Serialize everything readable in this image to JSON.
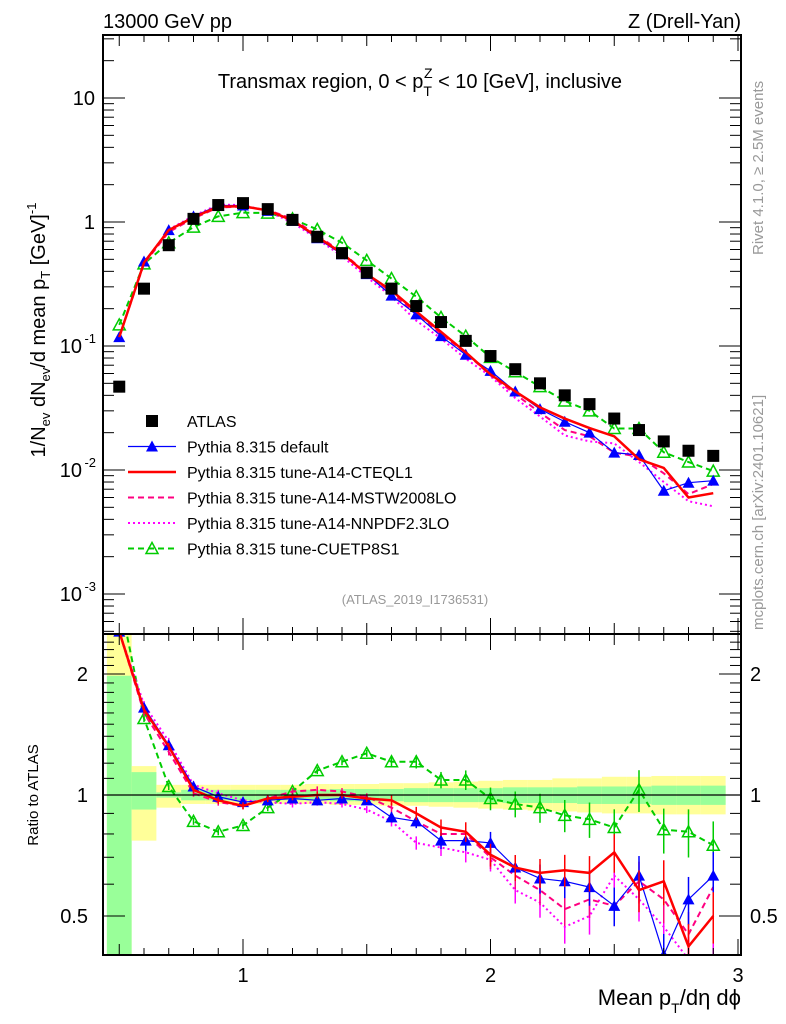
{
  "chart_data": [
    {
      "panel": "main",
      "type": "line",
      "title": "Transmax region, 0 < p_T^Z < 10 [GeV], inclusive",
      "header_left": "13000 GeV pp",
      "header_right": "Z (Drell-Yan)",
      "xlabel": "Mean p_T/dη dφ",
      "ylabel": "1/N_ev dN_ev/d mean p_T [GeV]^-1",
      "yscale": "log",
      "xlim": [
        0.4,
        3.0
      ],
      "ylim": [
        0.0005,
        30
      ],
      "x_ticks": [
        "1",
        "2",
        "3"
      ],
      "y_ticks": [
        "10^-3",
        "10^-2",
        "10^-1",
        "1",
        "10"
      ],
      "legend_position": "bottom-left",
      "annotation": "(ATLAS_2019_I1736531)",
      "x": [
        0.5,
        0.6,
        0.7,
        0.8,
        0.9,
        1.0,
        1.1,
        1.2,
        1.3,
        1.4,
        1.5,
        1.6,
        1.7,
        1.8,
        1.9,
        2.0,
        2.1,
        2.2,
        2.3,
        2.4,
        2.5,
        2.6,
        2.7,
        2.8,
        2.9
      ],
      "series": [
        {
          "name": "ATLAS",
          "color": "#000000",
          "style": "marker-square",
          "values": [
            0.047,
            0.29,
            0.65,
            1.06,
            1.37,
            1.42,
            1.27,
            1.04,
            0.76,
            0.56,
            0.39,
            0.29,
            0.21,
            0.156,
            0.11,
            0.083,
            0.065,
            0.05,
            0.04,
            0.034,
            0.026,
            0.021,
            0.017,
            0.0143,
            0.013
          ]
        },
        {
          "name": "Pythia 8.315 default",
          "color": "#0000ff",
          "style": "solid-triangle",
          "values": [
            0.118,
            0.48,
            0.86,
            1.11,
            1.36,
            1.36,
            1.23,
            1.02,
            0.74,
            0.55,
            0.38,
            0.255,
            0.18,
            0.12,
            0.085,
            0.063,
            0.043,
            0.031,
            0.0245,
            0.02,
            0.0138,
            0.0132,
            0.0068,
            0.0079,
            0.0082
          ]
        },
        {
          "name": "Pythia 8.315 tune-A14-CTEQL1",
          "color": "#ff0000",
          "style": "solid-thick",
          "values": [
            0.118,
            0.47,
            0.86,
            1.09,
            1.33,
            1.34,
            1.24,
            1.03,
            0.76,
            0.56,
            0.38,
            0.28,
            0.19,
            0.13,
            0.089,
            0.059,
            0.043,
            0.032,
            0.026,
            0.0218,
            0.0187,
            0.0122,
            0.0104,
            0.006,
            0.0065
          ]
        },
        {
          "name": "Pythia 8.315 tune-A14-MSTW2008LO",
          "color": "#ff0080",
          "style": "dashed",
          "values": [
            0.118,
            0.46,
            0.83,
            1.07,
            1.31,
            1.33,
            1.25,
            1.06,
            0.78,
            0.57,
            0.385,
            0.27,
            0.18,
            0.125,
            0.088,
            0.058,
            0.041,
            0.029,
            0.021,
            0.0187,
            0.0138,
            0.0128,
            0.0094,
            0.0064,
            0.0077
          ]
        },
        {
          "name": "Pythia 8.315 tune-A14-NNPDF2.3LO",
          "color": "#ff00ff",
          "style": "dotted",
          "values": [
            0.118,
            0.47,
            0.87,
            1.12,
            1.38,
            1.37,
            1.22,
            0.99,
            0.73,
            0.53,
            0.36,
            0.25,
            0.16,
            0.115,
            0.079,
            0.057,
            0.038,
            0.027,
            0.019,
            0.017,
            0.0164,
            0.0116,
            0.008,
            0.0056,
            0.0051
          ]
        },
        {
          "name": "Pythia 8.315 tune-CUETP8S1",
          "color": "#00cc00",
          "style": "dashed-open-triangle",
          "values": [
            0.148,
            0.46,
            0.68,
            0.91,
            1.11,
            1.19,
            1.18,
            1.06,
            0.87,
            0.68,
            0.49,
            0.35,
            0.25,
            0.17,
            0.12,
            0.081,
            0.062,
            0.047,
            0.036,
            0.03,
            0.0216,
            0.0216,
            0.0139,
            0.0116,
            0.0098
          ]
        }
      ]
    },
    {
      "panel": "ratio",
      "type": "line",
      "ylabel": "Ratio to ATLAS",
      "xlabel": "Mean p_T/dη dφ",
      "yscale": "log",
      "xlim": [
        0.4,
        3.0
      ],
      "ylim": [
        0.4,
        2.5
      ],
      "x_ticks": [
        "1",
        "2",
        "3"
      ],
      "y_ticks": [
        "0.5",
        "1",
        "2"
      ],
      "reference_line": 1,
      "x": [
        0.5,
        0.6,
        0.7,
        0.8,
        0.9,
        1.0,
        1.1,
        1.2,
        1.3,
        1.4,
        1.5,
        1.6,
        1.7,
        1.8,
        1.9,
        2.0,
        2.1,
        2.2,
        2.3,
        2.4,
        2.5,
        2.6,
        2.7,
        2.8,
        2.9
      ],
      "band_stat_green": [
        [
          0.35,
          1.98
        ],
        [
          0.92,
          1.14
        ],
        [
          0.985,
          1.015
        ],
        [
          0.97,
          1.03
        ],
        [
          0.97,
          1.03
        ],
        [
          0.97,
          1.03
        ],
        [
          0.97,
          1.03
        ],
        [
          0.97,
          1.03
        ],
        [
          0.97,
          1.03
        ],
        [
          0.965,
          1.035
        ],
        [
          0.965,
          1.035
        ],
        [
          0.965,
          1.035
        ],
        [
          0.96,
          1.04
        ],
        [
          0.96,
          1.04
        ],
        [
          0.96,
          1.04
        ],
        [
          0.96,
          1.04
        ],
        [
          0.955,
          1.045
        ],
        [
          0.955,
          1.045
        ],
        [
          0.955,
          1.045
        ],
        [
          0.95,
          1.05
        ],
        [
          0.95,
          1.05
        ],
        [
          0.95,
          1.05
        ],
        [
          0.945,
          1.055
        ],
        [
          0.945,
          1.055
        ],
        [
          0.945,
          1.055
        ]
      ],
      "band_total_yellow": [
        [
          0.35,
          2.5
        ],
        [
          0.77,
          1.18
        ],
        [
          0.93,
          1.06
        ],
        [
          0.95,
          1.06
        ],
        [
          0.95,
          1.06
        ],
        [
          0.95,
          1.06
        ],
        [
          0.95,
          1.06
        ],
        [
          0.95,
          1.06
        ],
        [
          0.95,
          1.065
        ],
        [
          0.945,
          1.065
        ],
        [
          0.945,
          1.065
        ],
        [
          0.94,
          1.07
        ],
        [
          0.94,
          1.07
        ],
        [
          0.935,
          1.075
        ],
        [
          0.93,
          1.08
        ],
        [
          0.925,
          1.085
        ],
        [
          0.92,
          1.09
        ],
        [
          0.915,
          1.09
        ],
        [
          0.91,
          1.1
        ],
        [
          0.905,
          1.1
        ],
        [
          0.9,
          1.11
        ],
        [
          0.9,
          1.11
        ],
        [
          0.895,
          1.115
        ],
        [
          0.895,
          1.115
        ],
        [
          0.895,
          1.115
        ]
      ],
      "series": [
        {
          "name": "Pythia 8.315 default",
          "color": "#0000ff",
          "values": [
            2.55,
            1.65,
            1.33,
            1.05,
            0.99,
            0.96,
            0.97,
            0.98,
            0.97,
            0.98,
            0.97,
            0.88,
            0.86,
            0.77,
            0.77,
            0.76,
            0.66,
            0.62,
            0.61,
            0.59,
            0.53,
            0.63,
            0.4,
            0.55,
            0.63
          ]
        },
        {
          "name": "Pythia 8.315 tune-A14-CTEQL1",
          "color": "#ff0000",
          "values": [
            2.55,
            1.63,
            1.32,
            1.03,
            0.97,
            0.94,
            0.98,
            0.99,
            1.0,
            1.0,
            0.98,
            0.97,
            0.9,
            0.83,
            0.81,
            0.71,
            0.66,
            0.64,
            0.65,
            0.64,
            0.72,
            0.58,
            0.61,
            0.42,
            0.5
          ]
        },
        {
          "name": "Pythia 8.315 tune-A14-MSTW2008LO",
          "color": "#ff0080",
          "values": [
            2.55,
            1.6,
            1.28,
            1.01,
            0.96,
            0.94,
            0.98,
            1.02,
            1.03,
            1.02,
            0.99,
            0.93,
            0.86,
            0.8,
            0.8,
            0.7,
            0.63,
            0.58,
            0.52,
            0.55,
            0.53,
            0.61,
            0.55,
            0.45,
            0.59
          ]
        },
        {
          "name": "Pythia 8.315 tune-A14-NNPDF2.3LO",
          "color": "#ff00ff",
          "values": [
            2.55,
            1.68,
            1.36,
            1.06,
            1.01,
            0.97,
            0.96,
            0.95,
            0.96,
            0.95,
            0.92,
            0.86,
            0.76,
            0.74,
            0.72,
            0.69,
            0.58,
            0.54,
            0.47,
            0.5,
            0.63,
            0.55,
            0.47,
            0.39,
            0.39
          ]
        },
        {
          "name": "Pythia 8.315 tune-CUETP8S1",
          "color": "#00cc00",
          "values": [
            3.1,
            1.55,
            1.05,
            0.86,
            0.81,
            0.84,
            0.93,
            1.02,
            1.15,
            1.21,
            1.27,
            1.21,
            1.21,
            1.09,
            1.09,
            0.98,
            0.95,
            0.93,
            0.89,
            0.87,
            0.83,
            1.03,
            0.82,
            0.81,
            0.75
          ]
        }
      ]
    }
  ],
  "side_labels": {
    "rivet": "Rivet 4.1.0, ≥ 2.5M events",
    "mcplots": "mcplots.cern.ch [arXiv:2401.10621]"
  }
}
